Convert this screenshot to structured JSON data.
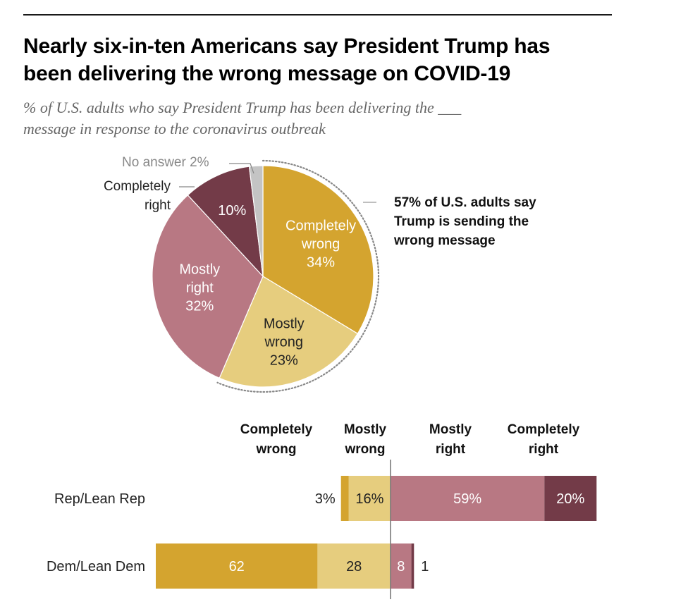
{
  "title_lines": [
    "Nearly six-in-ten Americans say President Trump has",
    "been delivering the wrong message on COVID-19"
  ],
  "subtitle_lines": [
    "% of U.S. adults who say President Trump has been delivering the ___",
    "message in response to the coronavirus outbreak"
  ],
  "colors": {
    "completely_wrong": "#d4a42f",
    "mostly_wrong": "#e6cd7e",
    "mostly_right": "#b87883",
    "completely_right": "#733b48",
    "no_answer": "#c4c4c4"
  },
  "chart_data": [
    {
      "type": "pie",
      "slices": [
        {
          "key": "completely_wrong",
          "label_lines": [
            "Completely",
            "wrong",
            "34%"
          ],
          "value": 34,
          "inside": true,
          "text_color": "#ffffff"
        },
        {
          "key": "mostly_wrong",
          "label_lines": [
            "Mostly",
            "wrong",
            "23%"
          ],
          "value": 23,
          "inside": true,
          "text_color": "#222222"
        },
        {
          "key": "mostly_right",
          "label_lines": [
            "Mostly",
            "right",
            "32%"
          ],
          "value": 32,
          "inside": true,
          "text_color": "#ffffff"
        },
        {
          "key": "completely_right",
          "label_lines": [
            "10%"
          ],
          "value": 10,
          "inside": true,
          "text_color": "#ffffff",
          "external_label_lines": [
            "Completely",
            "right"
          ]
        },
        {
          "key": "no_answer",
          "label_lines": [],
          "value": 2,
          "inside": false,
          "external_label_lines": [
            "No answer 2%"
          ]
        }
      ],
      "callout_lines": [
        "57% of U.S. adults say",
        "Trump is sending the",
        "wrong message"
      ],
      "callout_total": 57
    },
    {
      "type": "bar",
      "orientation": "horizontal-diverging",
      "column_headers": [
        {
          "key": "completely_wrong",
          "lines": [
            "Completely",
            "wrong"
          ]
        },
        {
          "key": "mostly_wrong",
          "lines": [
            "Mostly",
            "wrong"
          ]
        },
        {
          "key": "mostly_right",
          "lines": [
            "Mostly",
            "right"
          ]
        },
        {
          "key": "completely_right",
          "lines": [
            "Completely",
            "right"
          ]
        }
      ],
      "categories": [
        "Rep/Lean Rep",
        "Dem/Lean Dem"
      ],
      "series": [
        {
          "name": "Completely wrong",
          "key": "completely_wrong",
          "values": [
            3,
            62
          ],
          "labels": [
            "3%",
            "62"
          ]
        },
        {
          "name": "Mostly wrong",
          "key": "mostly_wrong",
          "values": [
            16,
            28
          ],
          "labels": [
            "16%",
            "28"
          ]
        },
        {
          "name": "Mostly right",
          "key": "mostly_right",
          "values": [
            59,
            8
          ],
          "labels": [
            "59%",
            "8"
          ]
        },
        {
          "name": "Completely right",
          "key": "completely_right",
          "values": [
            20,
            1
          ],
          "labels": [
            "20%",
            "1"
          ]
        }
      ]
    }
  ]
}
